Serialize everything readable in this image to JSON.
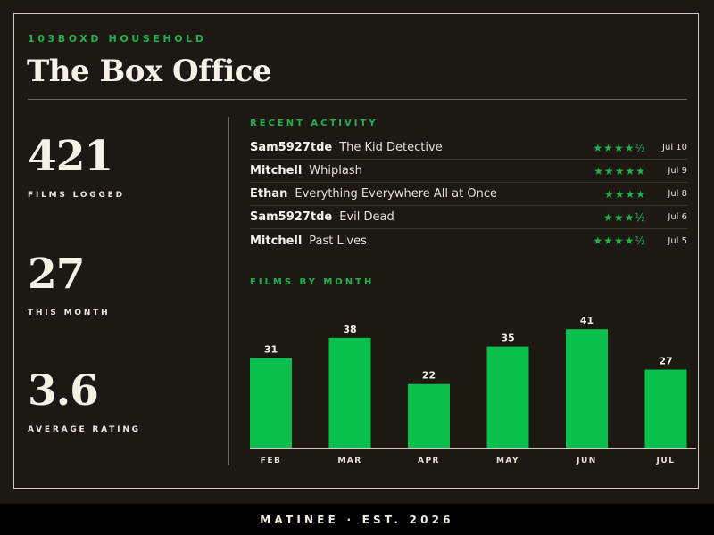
{
  "header": {
    "eyebrow": "103BOXD HOUSEHOLD",
    "title": "The Box Office"
  },
  "stats": [
    {
      "value": "421",
      "label": "FILMS LOGGED"
    },
    {
      "value": "27",
      "label": "THIS MONTH"
    },
    {
      "value": "3.6",
      "label": "AVERAGE RATING"
    }
  ],
  "activity": {
    "label": "RECENT ACTIVITY",
    "items": [
      {
        "user": "Sam5927tde",
        "film": "The Kid Detective",
        "stars": "★★★★½",
        "date": "Jul 10"
      },
      {
        "user": "Mitchell",
        "film": "Whiplash",
        "stars": "★★★★★",
        "date": "Jul 9"
      },
      {
        "user": "Ethan",
        "film": "Everything Everywhere All at Once",
        "stars": "★★★★",
        "date": "Jul 8"
      },
      {
        "user": "Sam5927tde",
        "film": "Evil Dead",
        "stars": "★★★½",
        "date": "Jul 6"
      },
      {
        "user": "Mitchell",
        "film": "Past Lives",
        "stars": "★★★★½",
        "date": "Jul 5"
      }
    ]
  },
  "films_by_month": {
    "label": "FILMS BY MONTH"
  },
  "chart_data": {
    "type": "bar",
    "categories": [
      "FEB",
      "MAR",
      "APR",
      "MAY",
      "JUN",
      "JUL"
    ],
    "values": [
      31,
      38,
      22,
      35,
      41,
      27
    ],
    "ylim": [
      0,
      45
    ],
    "color": "#08c04c",
    "grid": false
  },
  "footer": {
    "text": "MATINEE · EST. 2026"
  },
  "colors": {
    "background": "#1c1915",
    "accent": "#22b24c",
    "bar": "#08c04c",
    "text": "#f3ede0"
  }
}
